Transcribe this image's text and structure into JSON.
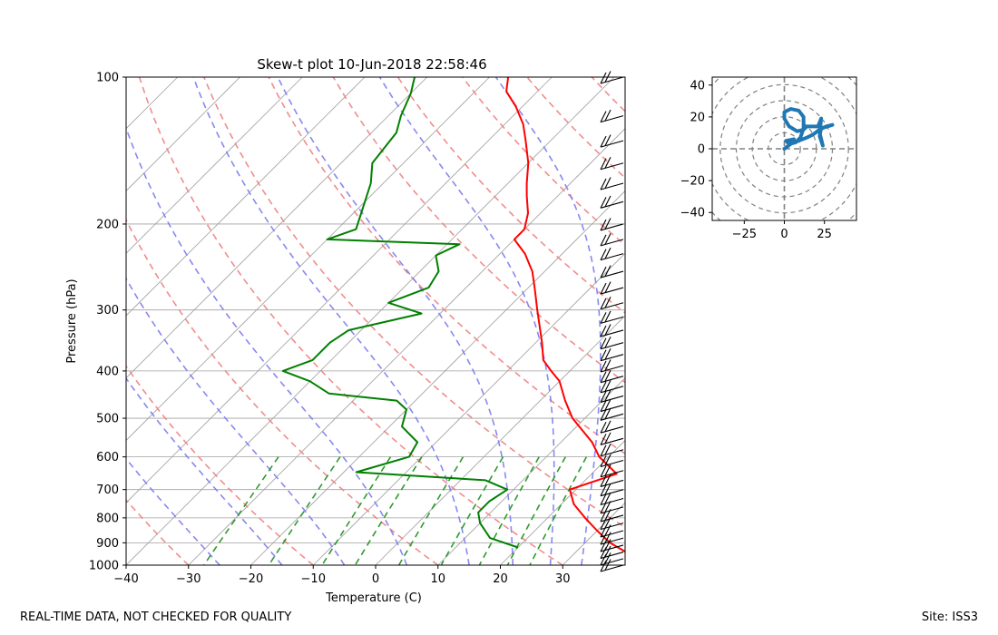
{
  "chart_data": [
    {
      "type": "skew-t",
      "title": "Skew-t plot 10-Jun-2018 22:58:46",
      "xlabel": "Temperature (C)",
      "ylabel": "Pressure (hPa)",
      "xlim": [
        -40,
        40
      ],
      "ylim": [
        1000,
        100
      ],
      "xticks": [
        -40,
        -30,
        -20,
        -10,
        0,
        10,
        20,
        30
      ],
      "yticks": [
        100,
        200,
        300,
        400,
        500,
        600,
        700,
        800,
        900,
        1000
      ],
      "grid": true,
      "temperature": [
        {
          "p": 940,
          "t": 38
        },
        {
          "p": 900,
          "t": 34
        },
        {
          "p": 850,
          "t": 30
        },
        {
          "p": 800,
          "t": 26
        },
        {
          "p": 750,
          "t": 22
        },
        {
          "p": 700,
          "t": 19
        },
        {
          "p": 650,
          "t": 24
        },
        {
          "p": 600,
          "t": 18.5
        },
        {
          "p": 560,
          "t": 15
        },
        {
          "p": 500,
          "t": 8
        },
        {
          "p": 460,
          "t": 4
        },
        {
          "p": 420,
          "t": 0
        },
        {
          "p": 400,
          "t": -3
        },
        {
          "p": 380,
          "t": -6
        },
        {
          "p": 350,
          "t": -9
        },
        {
          "p": 300,
          "t": -15
        },
        {
          "p": 270,
          "t": -19
        },
        {
          "p": 250,
          "t": -22
        },
        {
          "p": 230,
          "t": -26
        },
        {
          "p": 215,
          "t": -30
        },
        {
          "p": 205,
          "t": -30
        },
        {
          "p": 190,
          "t": -32
        },
        {
          "p": 175,
          "t": -35
        },
        {
          "p": 165,
          "t": -37
        },
        {
          "p": 150,
          "t": -40
        },
        {
          "p": 135,
          "t": -44
        },
        {
          "p": 125,
          "t": -47
        },
        {
          "p": 115,
          "t": -51
        },
        {
          "p": 107,
          "t": -55
        },
        {
          "p": 100,
          "t": -57
        }
      ],
      "dewpoint": [
        {
          "p": 920,
          "t": 20
        },
        {
          "p": 880,
          "t": 14
        },
        {
          "p": 820,
          "t": 10
        },
        {
          "p": 780,
          "t": 8
        },
        {
          "p": 740,
          "t": 8
        },
        {
          "p": 700,
          "t": 9
        },
        {
          "p": 670,
          "t": 4
        },
        {
          "p": 645,
          "t": -18
        },
        {
          "p": 600,
          "t": -12
        },
        {
          "p": 560,
          "t": -13
        },
        {
          "p": 520,
          "t": -18
        },
        {
          "p": 480,
          "t": -20
        },
        {
          "p": 460,
          "t": -23
        },
        {
          "p": 445,
          "t": -35
        },
        {
          "p": 420,
          "t": -40
        },
        {
          "p": 400,
          "t": -46
        },
        {
          "p": 380,
          "t": -43
        },
        {
          "p": 350,
          "t": -43
        },
        {
          "p": 330,
          "t": -42
        },
        {
          "p": 305,
          "t": -33
        },
        {
          "p": 290,
          "t": -40
        },
        {
          "p": 270,
          "t": -36
        },
        {
          "p": 250,
          "t": -37
        },
        {
          "p": 232,
          "t": -40
        },
        {
          "p": 220,
          "t": -38
        },
        {
          "p": 215,
          "t": -60
        },
        {
          "p": 205,
          "t": -57
        },
        {
          "p": 180,
          "t": -60
        },
        {
          "p": 165,
          "t": -62
        },
        {
          "p": 150,
          "t": -65
        },
        {
          "p": 130,
          "t": -66
        },
        {
          "p": 120,
          "t": -68
        },
        {
          "p": 108,
          "t": -70
        },
        {
          "p": 100,
          "t": -72
        }
      ],
      "wind_barb_pressures": [
        100,
        120,
        135,
        150,
        165,
        180,
        200,
        215,
        230,
        250,
        270,
        290,
        310,
        330,
        350,
        370,
        390,
        410,
        430,
        450,
        470,
        490,
        520,
        550,
        580,
        610,
        640,
        670,
        700,
        730,
        760,
        790,
        820,
        850,
        880,
        910,
        940,
        970,
        1000
      ]
    },
    {
      "type": "hodograph",
      "xlim": [
        -45,
        45
      ],
      "ylim": [
        -45,
        45
      ],
      "xticks": [
        -25,
        0,
        25
      ],
      "yticks": [
        -40,
        -20,
        0,
        20,
        40
      ],
      "ring_spacing": 10,
      "path": [
        {
          "u": 0,
          "v": 0
        },
        {
          "u": 4,
          "v": 3
        },
        {
          "u": 9,
          "v": 5
        },
        {
          "u": 14,
          "v": 7
        },
        {
          "u": 18,
          "v": 9
        },
        {
          "u": 22,
          "v": 12
        },
        {
          "u": 26,
          "v": 14
        },
        {
          "u": 30,
          "v": 15
        },
        {
          "u": 27,
          "v": 14
        },
        {
          "u": 23,
          "v": 13
        },
        {
          "u": 22,
          "v": 8
        },
        {
          "u": 24,
          "v": 2
        },
        {
          "u": 22,
          "v": 10
        },
        {
          "u": 23,
          "v": 19
        },
        {
          "u": 21,
          "v": 14
        },
        {
          "u": 14,
          "v": 14
        },
        {
          "u": 12,
          "v": 12
        },
        {
          "u": 8,
          "v": 11
        },
        {
          "u": 3,
          "v": 14
        },
        {
          "u": 0,
          "v": 19
        },
        {
          "u": 0,
          "v": 23
        },
        {
          "u": 4,
          "v": 25
        },
        {
          "u": 9,
          "v": 24
        },
        {
          "u": 12,
          "v": 20
        },
        {
          "u": 12,
          "v": 13
        },
        {
          "u": 10,
          "v": 7
        },
        {
          "u": 7,
          "v": 4
        },
        {
          "u": 3,
          "v": 3
        },
        {
          "u": 1,
          "v": 5
        },
        {
          "u": 6,
          "v": 6
        }
      ]
    }
  ],
  "footer": {
    "left": "REAL-TIME DATA, NOT CHECKED FOR QUALITY",
    "right": "Site: ISS3"
  },
  "colors": {
    "temperature": "#ff0000",
    "dewpoint": "#008000",
    "dry_adiabats": "#f08080",
    "moist_adiabats": "#7b7bf0",
    "mixing_ratio": "#2e9a2e",
    "isotherms": "#a0a0a0",
    "hodograph": "#1f77b4"
  }
}
